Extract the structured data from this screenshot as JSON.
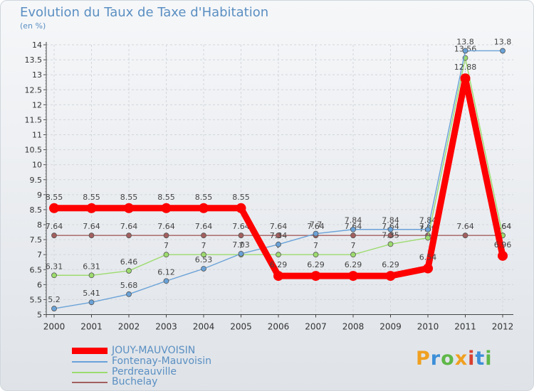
{
  "chart_data": {
    "type": "line",
    "title": "Evolution du Taux de Taxe d'Habitation",
    "unit_label": "(en %)",
    "xlabel": "",
    "ylabel": "",
    "categories": [
      "2000",
      "2001",
      "2002",
      "2003",
      "2004",
      "2005",
      "2006",
      "2007",
      "2008",
      "2009",
      "2010",
      "2011",
      "2012"
    ],
    "ylim": [
      5,
      14
    ],
    "yticks": [
      "5",
      "5.5",
      "6",
      "6.5",
      "7",
      "7.5",
      "8",
      "8.5",
      "9",
      "9.5",
      "10",
      "10.5",
      "11",
      "11.5",
      "12",
      "12.5",
      "13",
      "13.5",
      "14"
    ],
    "series": [
      {
        "name": "JOUY-MAUVOISIN",
        "color": "#ff0000",
        "values": [
          8.55,
          8.55,
          8.55,
          8.55,
          8.55,
          8.55,
          6.29,
          6.29,
          6.29,
          6.29,
          6.54,
          12.88,
          6.96
        ],
        "labels": [
          "8.55",
          "8.55",
          "8.55",
          "8.55",
          "8.55",
          "8.55",
          "6.29",
          "6.29",
          "6.29",
          "6.29",
          "6.54",
          "12.88",
          "6.96"
        ]
      },
      {
        "name": "Fontenay-Mauvoisin",
        "color": "#6aa2d8",
        "values": [
          5.2,
          5.41,
          5.68,
          6.12,
          6.53,
          7.03,
          7.34,
          7.7,
          7.84,
          7.84,
          7.84,
          13.8,
          13.8
        ],
        "labels": [
          "5.2",
          "5.41",
          "5.68",
          "6.12",
          "6.53",
          "7.03",
          "7.34",
          "7.7",
          "7.84",
          "7.84",
          "7.84",
          "13.8",
          "13.8"
        ]
      },
      {
        "name": "Perdreauville",
        "color": "#9ddb6e",
        "values": [
          6.31,
          6.31,
          6.46,
          7,
          7,
          7,
          7,
          7,
          7,
          7.35,
          7.56,
          13.56,
          7.64
        ],
        "labels": [
          "6.31",
          "6.31",
          "6.46",
          "7",
          "7",
          "7",
          "7",
          "7",
          "7",
          "7.35",
          "7.56",
          "13.56",
          "7.64"
        ]
      },
      {
        "name": "Buchelay",
        "color": "#a35f5f",
        "values": [
          7.64,
          7.64,
          7.64,
          7.64,
          7.64,
          7.64,
          7.64,
          7.64,
          7.64,
          7.64,
          7.64,
          7.64,
          7.64
        ],
        "labels": [
          "7.64",
          "7.64",
          "7.64",
          "7.64",
          "7.64",
          "7.64",
          "7.64",
          "7.64",
          "7.64",
          "7.64",
          "7.64",
          "7.64",
          "7.64"
        ]
      }
    ]
  },
  "legend": [
    "JOUY-MAUVOISIN",
    "Fontenay-Mauvoisin",
    "Perdreauville",
    "Buchelay"
  ],
  "logo": {
    "text": "Proxiti"
  }
}
